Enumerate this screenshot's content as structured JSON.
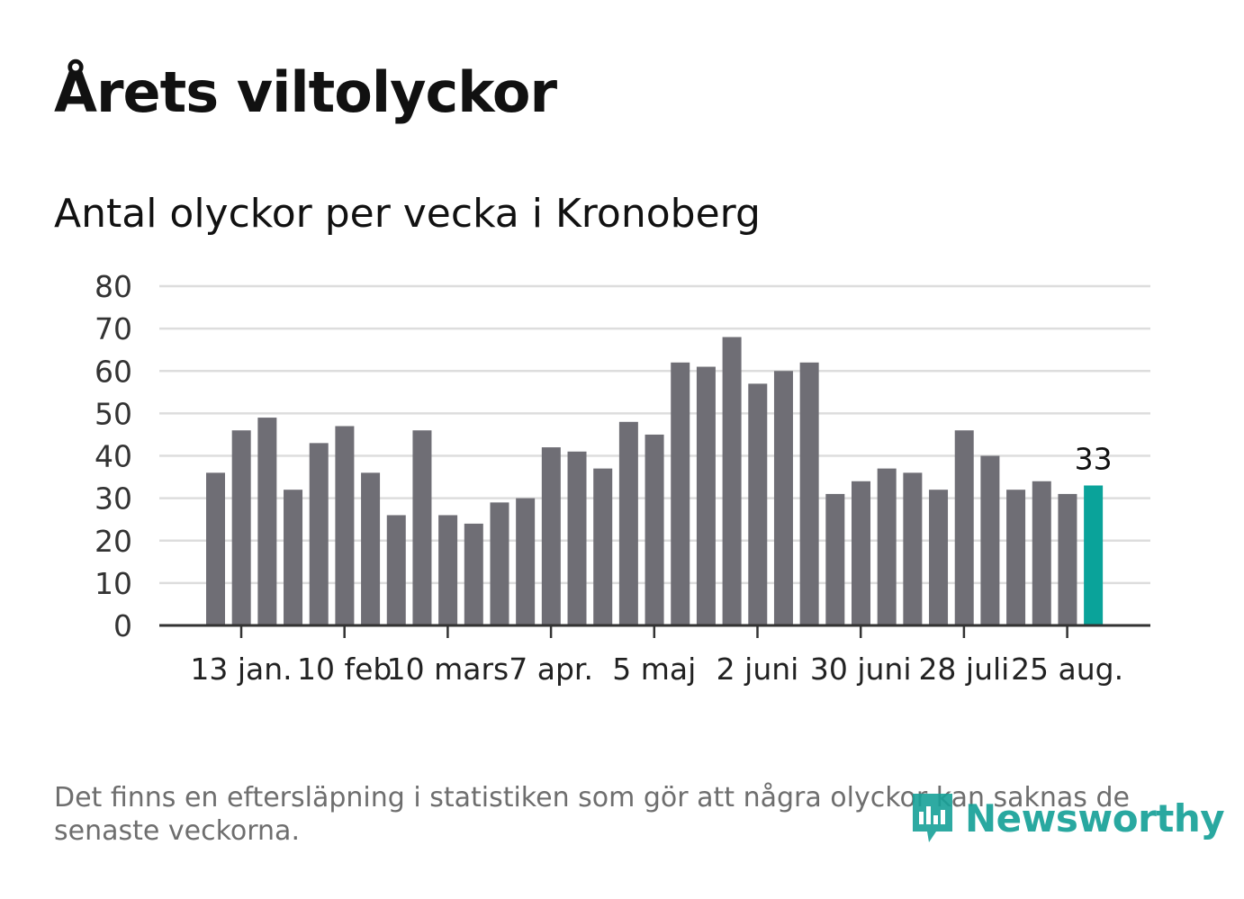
{
  "title": "Årets viltolyckor",
  "subtitle": "Antal olyckor per vecka i Kronoberg",
  "footnote": "Det finns en eftersläpning i statistiken som gör att några olyckor kan saknas de senaste veckorna.",
  "brand": {
    "name": "Newsworthy",
    "icon": "newsworthy-logo-icon",
    "color": "#17a198"
  },
  "chart_data": {
    "type": "bar",
    "values": [
      36,
      46,
      49,
      32,
      43,
      47,
      36,
      26,
      46,
      26,
      24,
      29,
      30,
      42,
      41,
      37,
      48,
      45,
      62,
      61,
      68,
      57,
      60,
      62,
      31,
      34,
      37,
      36,
      32,
      46,
      40,
      32,
      34,
      31,
      33
    ],
    "x_tick_labels": [
      "13 jan.",
      "10 feb",
      "10 mars",
      "7 apr.",
      "5 maj",
      "2 juni",
      "30 juni",
      "28 juli",
      "25 aug."
    ],
    "y_ticks": [
      "0",
      "10",
      "20",
      "30",
      "40",
      "50",
      "60",
      "70",
      "80"
    ],
    "ylim": [
      0,
      80
    ],
    "data_label": "33",
    "highlight": "last",
    "grid": true,
    "colors": {
      "bar": "#6f6e75",
      "highlight": "#0aa39a",
      "grid": "#dddddd",
      "axis": "#333333"
    }
  }
}
